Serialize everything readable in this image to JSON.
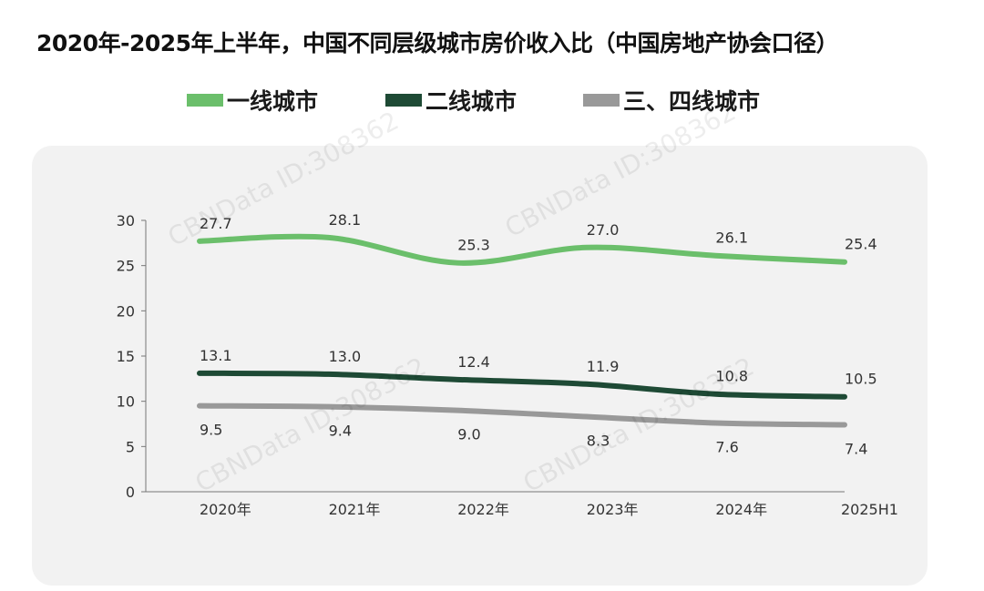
{
  "chart_data": {
    "type": "line",
    "title": "2020年-2025年上半年，中国不同层级城市房价收入比（中国房地产协会口径）",
    "categories": [
      "2020年",
      "2021年",
      "2022年",
      "2023年",
      "2024年",
      "2025H1"
    ],
    "ylim": [
      0,
      30
    ],
    "yticks": [
      "0",
      "5",
      "10",
      "15",
      "20",
      "25",
      "30"
    ],
    "legend_position": "top",
    "grid": false,
    "series": [
      {
        "name": "一线城市",
        "color": "#6bbf6b",
        "values": [
          27.7,
          28.1,
          25.3,
          27.0,
          26.1,
          25.4
        ],
        "labels": [
          "27.7",
          "28.1",
          "25.3",
          "27.0",
          "26.1",
          "25.4"
        ],
        "label_pos": "above"
      },
      {
        "name": "二线城市",
        "color": "#1e4a35",
        "values": [
          13.1,
          13.0,
          12.4,
          11.9,
          10.8,
          10.5
        ],
        "labels": [
          "13.1",
          "13.0",
          "12.4",
          "11.9",
          "10.8",
          "10.5"
        ],
        "label_pos": "above"
      },
      {
        "name": "三、四线城市",
        "color": "#999999",
        "values": [
          9.5,
          9.4,
          9.0,
          8.3,
          7.6,
          7.4
        ],
        "labels": [
          "9.5",
          "9.4",
          "9.0",
          "8.3",
          "7.6",
          "7.4"
        ],
        "label_pos": "below"
      }
    ]
  },
  "watermark": "CBNData ID:308362"
}
